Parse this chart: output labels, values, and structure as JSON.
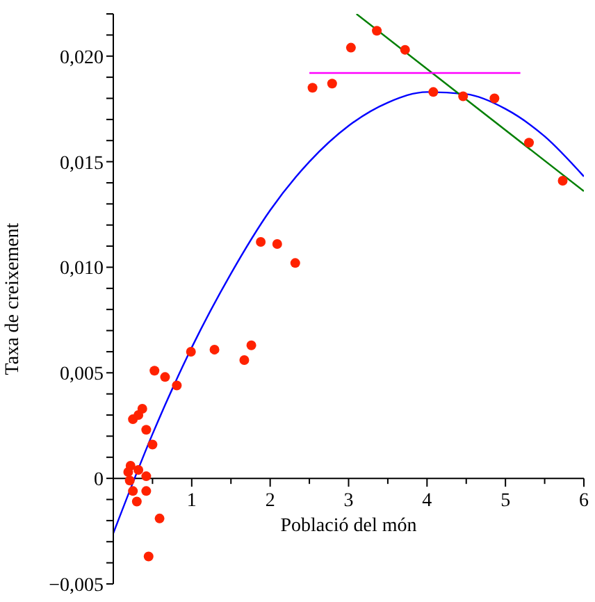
{
  "chart_data": {
    "type": "scatter",
    "xlabel": "Població del món",
    "ylabel": "Taxa de creixement",
    "xlim": [
      0,
      6
    ],
    "ylim": [
      -0.005,
      0.022
    ],
    "xticks": [
      {
        "value": 0.5,
        "label": null
      },
      1,
      {
        "value": 1.5,
        "label": null
      },
      2,
      {
        "value": 2.5,
        "label": null
      },
      3,
      {
        "value": 3.5,
        "label": null
      },
      4,
      {
        "value": 4.5,
        "label": null
      },
      5,
      {
        "value": 5.5,
        "label": null
      },
      6
    ],
    "yticks": [
      {
        "value": -0.005,
        "label": "−0,005"
      },
      {
        "value": -0.004,
        "label": null
      },
      {
        "value": -0.003,
        "label": null
      },
      {
        "value": -0.002,
        "label": null
      },
      {
        "value": -0.001,
        "label": null
      },
      0,
      {
        "value": 0.001,
        "label": null
      },
      {
        "value": 0.002,
        "label": null
      },
      {
        "value": 0.003,
        "label": null
      },
      {
        "value": 0.004,
        "label": null
      },
      {
        "value": 0.005,
        "label": "0,005"
      },
      {
        "value": 0.006,
        "label": null
      },
      {
        "value": 0.007,
        "label": null
      },
      {
        "value": 0.008,
        "label": null
      },
      {
        "value": 0.009,
        "label": null
      },
      {
        "value": 0.01,
        "label": "0,010"
      },
      {
        "value": 0.011,
        "label": null
      },
      {
        "value": 0.012,
        "label": null
      },
      {
        "value": 0.013,
        "label": null
      },
      {
        "value": 0.014,
        "label": null
      },
      {
        "value": 0.015,
        "label": "0,015"
      },
      {
        "value": 0.016,
        "label": null
      },
      {
        "value": 0.017,
        "label": null
      },
      {
        "value": 0.018,
        "label": null
      },
      {
        "value": 0.019,
        "label": null
      },
      {
        "value": 0.02,
        "label": "0,020"
      },
      {
        "value": 0.021,
        "label": null
      },
      {
        "value": 0.022,
        "label": null
      }
    ],
    "series": [
      {
        "marker": "circle",
        "color": "#ff2200",
        "x": [
          2.54,
          2.79,
          3.03,
          3.36,
          3.72,
          4.08,
          4.46,
          4.86,
          5.3,
          5.73,
          1.88,
          2.09,
          2.32,
          0.99,
          1.29,
          1.67,
          1.76,
          0.525,
          0.66,
          0.81,
          0.25,
          0.32,
          0.37,
          0.42,
          0.5,
          0.22,
          0.19,
          0.32,
          0.21,
          0.42,
          0.25,
          0.42,
          0.3,
          0.59,
          0.45
        ],
        "values": [
          0.0185,
          0.0187,
          0.0204,
          0.0212,
          0.0203,
          0.0183,
          0.0181,
          0.018,
          0.0159,
          0.0141,
          0.0112,
          0.0111,
          0.0102,
          0.006,
          0.0061,
          0.0056,
          0.0063,
          0.0051,
          0.0048,
          0.0044,
          0.0028,
          0.003,
          0.0033,
          0.0023,
          0.0016,
          0.0006,
          0.0003,
          0.0004,
          -0.0001,
          0.0001,
          -0.0006,
          -0.0006,
          -0.0011,
          -0.0019,
          -0.0037
        ]
      },
      {
        "type": "line",
        "marker": "none",
        "color": "#0000ff",
        "x": [
          0,
          0.5,
          1,
          1.5,
          2,
          2.5,
          3,
          3.5,
          4,
          4.5,
          5,
          5.5,
          6
        ],
        "values": [
          -0.0026,
          0.0021,
          0.0062,
          0.0097,
          0.0127,
          0.015,
          0.0167,
          0.0178,
          0.0183,
          0.0182,
          0.0175,
          0.0162,
          0.0143
        ]
      },
      {
        "type": "line",
        "marker": "none",
        "color": "#007f00",
        "x": [
          3.1,
          6
        ],
        "values": [
          0.022,
          0.0136
        ]
      },
      {
        "type": "line",
        "marker": "none",
        "color": "#ff00ff",
        "x": [
          2.5,
          5.19
        ],
        "values": [
          0.0192,
          0.0192
        ]
      }
    ]
  }
}
